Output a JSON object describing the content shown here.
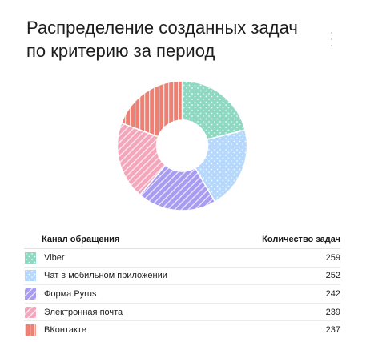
{
  "title": "Распределение созданных задач по критерию за период",
  "menu_icon": "kebab-menu-icon",
  "table": {
    "col_channel": "Канал обращения",
    "col_count": "Количество задач"
  },
  "chart_data": {
    "type": "pie",
    "variant": "donut",
    "title": "Распределение созданных задач по критерию за период",
    "categories": [
      "Viber",
      "Чат в мобильном приложении",
      "Форма Pyrus",
      "Электронная почта",
      "ВКонтакте"
    ],
    "values": [
      259,
      252,
      242,
      239,
      237
    ],
    "colors": [
      "#8fd9c3",
      "#b5d8fc",
      "#a79bf2",
      "#f4a6bc",
      "#ef7f72"
    ],
    "patterns": [
      "dots",
      "dots",
      "diagonal-stripes",
      "diagonal-stripes",
      "vertical-stripes"
    ],
    "legend": "bottom-table"
  }
}
